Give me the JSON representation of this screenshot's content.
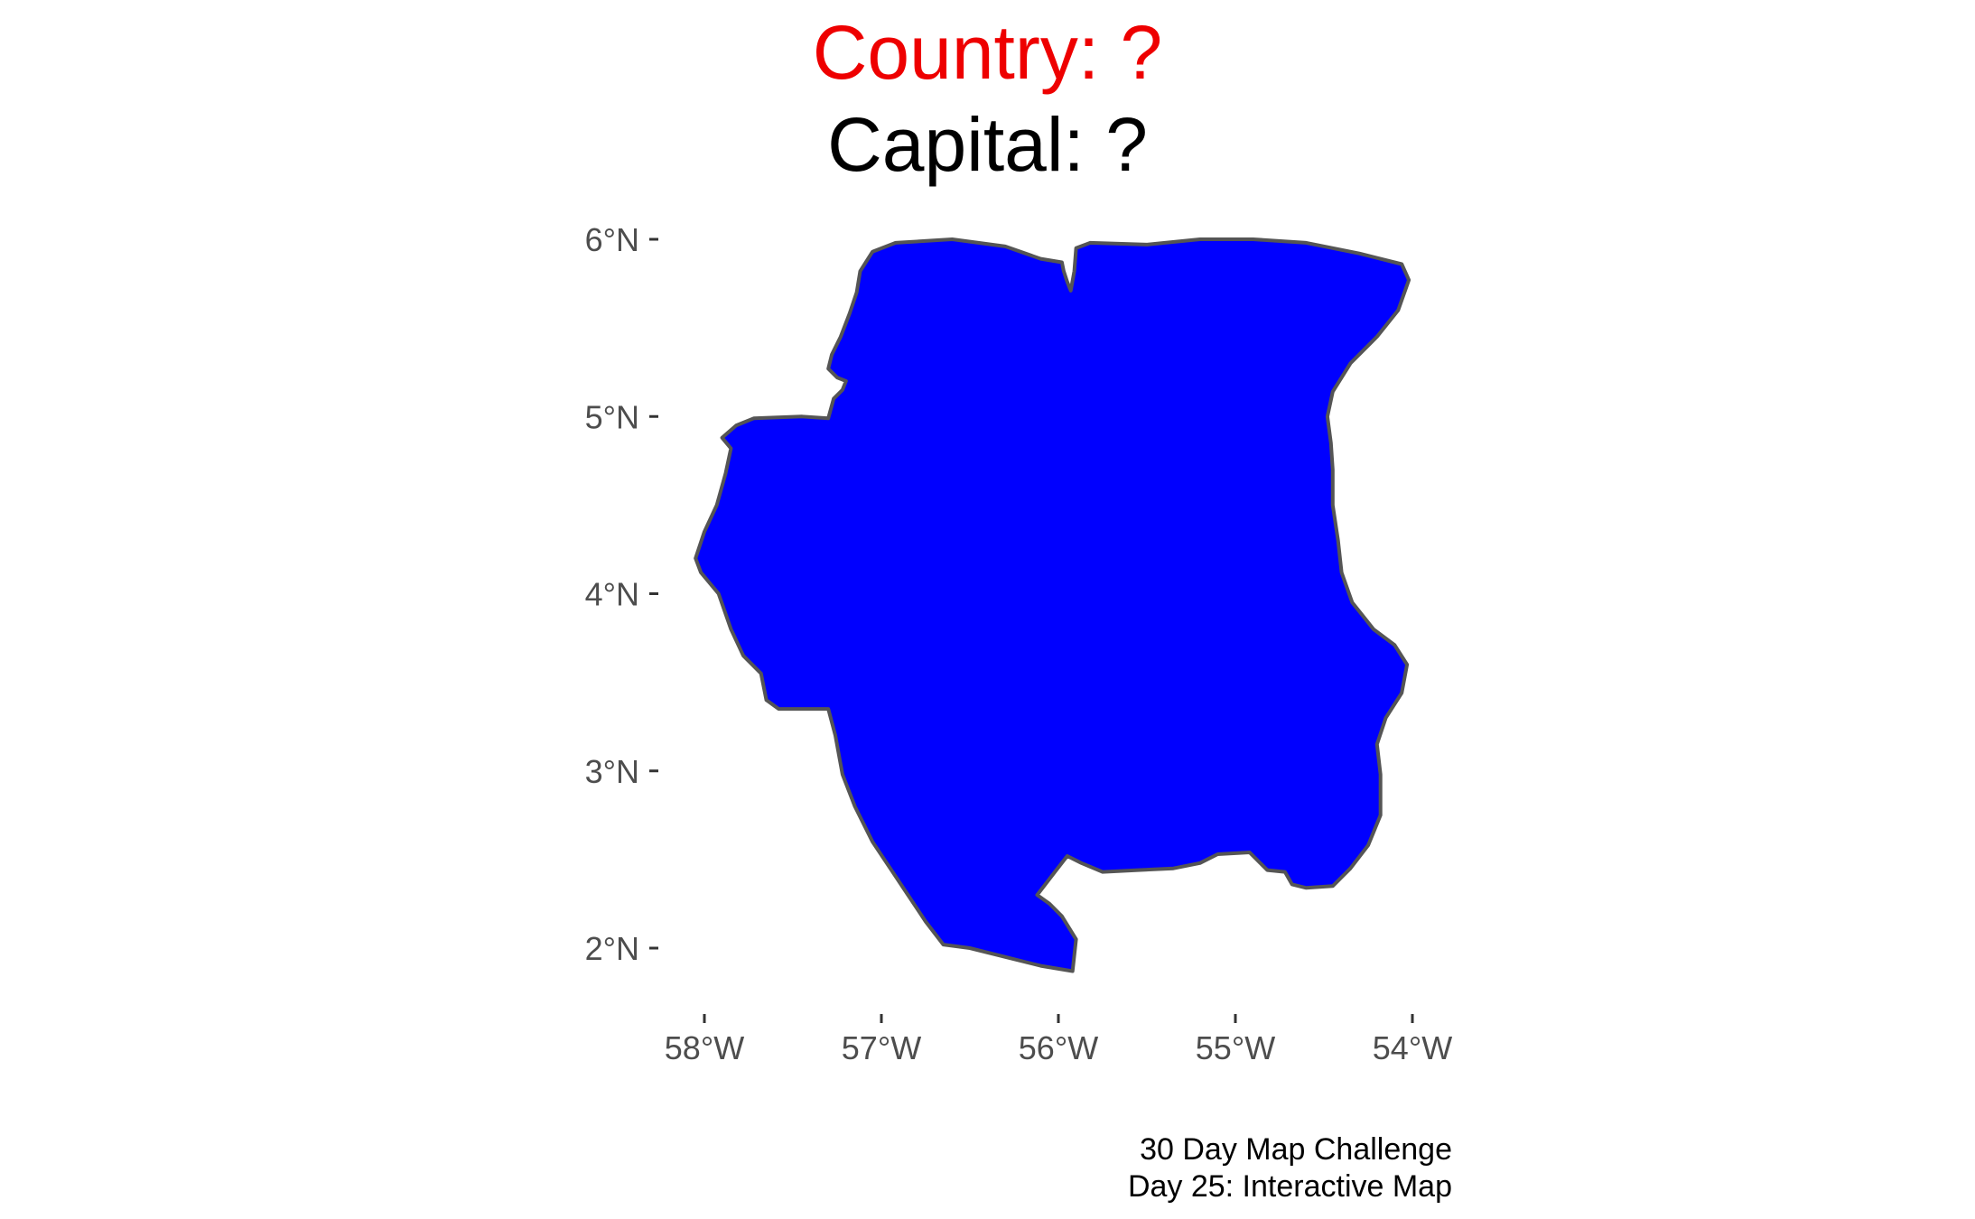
{
  "title": {
    "country": "Country: ?",
    "capital": "Capital: ?",
    "country_color": "#ee0000",
    "capital_color": "#000000"
  },
  "map": {
    "fill_color": "#0000ff",
    "outline_color": "#555555",
    "background_color": "#ffffff",
    "grid": false,
    "projection": "geographic lat/lon",
    "lon_range": [
      -58.2,
      -53.8
    ],
    "lat_range": [
      1.7,
      6.1
    ],
    "x_ticks": [
      {
        "value": -58,
        "label": "58°W"
      },
      {
        "value": -57,
        "label": "57°W"
      },
      {
        "value": -56,
        "label": "56°W"
      },
      {
        "value": -55,
        "label": "55°W"
      },
      {
        "value": -54,
        "label": "54°W"
      }
    ],
    "y_ticks": [
      {
        "value": 6,
        "label": "6°N"
      },
      {
        "value": 5,
        "label": "5°N"
      },
      {
        "value": 4,
        "label": "4°N"
      },
      {
        "value": 3,
        "label": "3°N"
      },
      {
        "value": 2,
        "label": "2°N"
      }
    ],
    "country_outline": [
      [
        -56.92,
        5.98
      ],
      [
        -56.6,
        6.0
      ],
      [
        -56.3,
        5.96
      ],
      [
        -56.1,
        5.89
      ],
      [
        -55.98,
        5.87
      ],
      [
        -55.97,
        5.82
      ],
      [
        -55.95,
        5.76
      ],
      [
        -55.93,
        5.71
      ],
      [
        -55.91,
        5.82
      ],
      [
        -55.9,
        5.95
      ],
      [
        -55.82,
        5.98
      ],
      [
        -55.5,
        5.97
      ],
      [
        -55.2,
        6.0
      ],
      [
        -54.9,
        6.0
      ],
      [
        -54.6,
        5.98
      ],
      [
        -54.3,
        5.92
      ],
      [
        -54.06,
        5.86
      ],
      [
        -54.02,
        5.77
      ],
      [
        -54.08,
        5.6
      ],
      [
        -54.2,
        5.45
      ],
      [
        -54.35,
        5.3
      ],
      [
        -54.45,
        5.14
      ],
      [
        -54.48,
        5.0
      ],
      [
        -54.46,
        4.85
      ],
      [
        -54.45,
        4.7
      ],
      [
        -54.45,
        4.5
      ],
      [
        -54.42,
        4.3
      ],
      [
        -54.4,
        4.12
      ],
      [
        -54.34,
        3.95
      ],
      [
        -54.22,
        3.8
      ],
      [
        -54.1,
        3.71
      ],
      [
        -54.03,
        3.6
      ],
      [
        -54.06,
        3.44
      ],
      [
        -54.15,
        3.3
      ],
      [
        -54.2,
        3.15
      ],
      [
        -54.18,
        2.98
      ],
      [
        -54.18,
        2.75
      ],
      [
        -54.25,
        2.58
      ],
      [
        -54.35,
        2.45
      ],
      [
        -54.45,
        2.35
      ],
      [
        -54.6,
        2.34
      ],
      [
        -54.68,
        2.36
      ],
      [
        -54.72,
        2.43
      ],
      [
        -54.82,
        2.44
      ],
      [
        -54.92,
        2.54
      ],
      [
        -55.1,
        2.53
      ],
      [
        -55.2,
        2.48
      ],
      [
        -55.35,
        2.45
      ],
      [
        -55.55,
        2.44
      ],
      [
        -55.75,
        2.43
      ],
      [
        -55.87,
        2.48
      ],
      [
        -55.95,
        2.52
      ],
      [
        -56.02,
        2.43
      ],
      [
        -56.12,
        2.3
      ],
      [
        -56.05,
        2.25
      ],
      [
        -55.98,
        2.18
      ],
      [
        -55.9,
        2.05
      ],
      [
        -55.92,
        1.87
      ],
      [
        -56.1,
        1.9
      ],
      [
        -56.3,
        1.95
      ],
      [
        -56.5,
        2.0
      ],
      [
        -56.65,
        2.02
      ],
      [
        -56.75,
        2.15
      ],
      [
        -56.85,
        2.3
      ],
      [
        -56.95,
        2.45
      ],
      [
        -57.05,
        2.6
      ],
      [
        -57.15,
        2.8
      ],
      [
        -57.22,
        2.98
      ],
      [
        -57.26,
        3.2
      ],
      [
        -57.3,
        3.35
      ],
      [
        -57.45,
        3.35
      ],
      [
        -57.58,
        3.35
      ],
      [
        -57.65,
        3.4
      ],
      [
        -57.68,
        3.55
      ],
      [
        -57.78,
        3.65
      ],
      [
        -57.85,
        3.8
      ],
      [
        -57.92,
        4.0
      ],
      [
        -58.02,
        4.12
      ],
      [
        -58.05,
        4.2
      ],
      [
        -58.0,
        4.35
      ],
      [
        -57.93,
        4.5
      ],
      [
        -57.88,
        4.68
      ],
      [
        -57.85,
        4.82
      ],
      [
        -57.9,
        4.88
      ],
      [
        -57.82,
        4.95
      ],
      [
        -57.72,
        4.99
      ],
      [
        -57.45,
        5.0
      ],
      [
        -57.3,
        4.99
      ],
      [
        -57.27,
        5.1
      ],
      [
        -57.22,
        5.15
      ],
      [
        -57.2,
        5.2
      ],
      [
        -57.25,
        5.22
      ],
      [
        -57.3,
        5.27
      ],
      [
        -57.28,
        5.35
      ],
      [
        -57.23,
        5.45
      ],
      [
        -57.18,
        5.58
      ],
      [
        -57.14,
        5.7
      ],
      [
        -57.12,
        5.82
      ],
      [
        -57.05,
        5.93
      ],
      [
        -56.92,
        5.98
      ]
    ]
  },
  "caption": {
    "line1": "30 Day Map Challenge",
    "line2": "Day 25: Interactive Map"
  }
}
